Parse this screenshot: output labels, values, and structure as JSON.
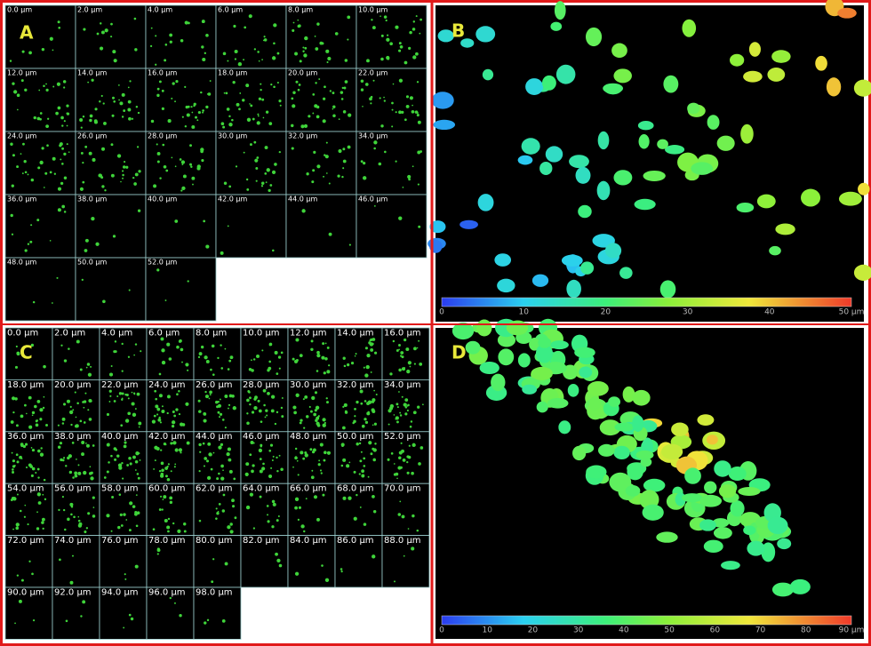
{
  "panel_a": {
    "letter": "A",
    "tiles": [
      "0.0 µm",
      "2.0 µm",
      "4.0 µm",
      "6.0 µm",
      "8.0 µm",
      "10.0 µm",
      "12.0 µm",
      "14.0 µm",
      "16.0 µm",
      "18.0 µm",
      "20.0 µm",
      "22.0 µm",
      "24.0 µm",
      "26.0 µm",
      "28.0 µm",
      "30.0 µm",
      "32.0 µm",
      "34.0 µm",
      "36.0 µm",
      "38.0 µm",
      "40.0 µm",
      "42.0 µm",
      "44.0 µm",
      "46.0 µm",
      "48.0 µm",
      "50.0 µm",
      "52.0 µm"
    ]
  },
  "panel_b": {
    "letter": "B",
    "colorbar_ticks": [
      "0",
      "10",
      "20",
      "30",
      "40",
      "50 µm"
    ]
  },
  "panel_c": {
    "letter": "C",
    "tiles": [
      "0.0 µm",
      "2.0 µm",
      "4.0 µm",
      "6.0 µm",
      "8.0 µm",
      "10.0 µm",
      "12.0 µm",
      "14.0 µm",
      "16.0 µm",
      "18.0 µm",
      "20.0 µm",
      "22.0 µm",
      "24.0 µm",
      "26.0 µm",
      "28.0 µm",
      "30.0 µm",
      "32.0 µm",
      "34.0 µm",
      "36.0 µm",
      "38.0 µm",
      "40.0 µm",
      "42.0 µm",
      "44.0 µm",
      "46.0 µm",
      "48.0 µm",
      "50.0 µm",
      "52.0 µm",
      "54.0 µm",
      "56.0 µm",
      "58.0 µm",
      "60.0 µm",
      "62.0 µm",
      "64.0 µm",
      "66.0 µm",
      "68.0 µm",
      "70.0 µm",
      "72.0 µm",
      "74.0 µm",
      "76.0 µm",
      "78.0 µm",
      "80.0 µm",
      "82.0 µm",
      "84.0 µm",
      "86.0 µm",
      "88.0 µm",
      "90.0 µm",
      "92.0 µm",
      "94.0 µm",
      "96.0 µm",
      "98.0 µm"
    ]
  },
  "panel_d": {
    "letter": "D",
    "colorbar_ticks": [
      "0",
      "10",
      "20",
      "30",
      "40",
      "50",
      "60",
      "70",
      "80",
      "90 µm"
    ]
  }
}
